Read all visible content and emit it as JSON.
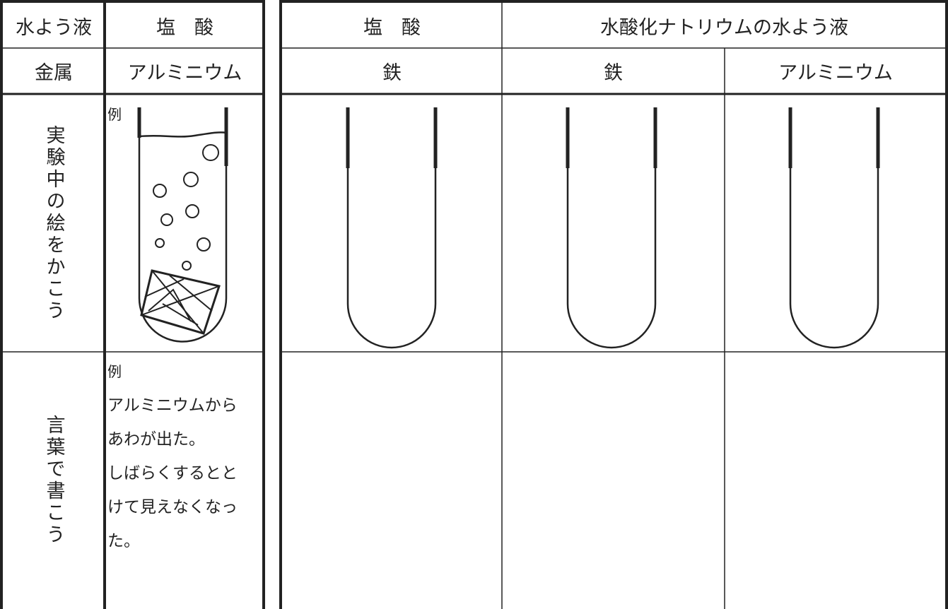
{
  "left_table": {
    "header": {
      "solution_label": "水よう液",
      "solution": "塩　酸"
    },
    "metal_row": {
      "label": "金属",
      "metal": "アルミニウム"
    },
    "drawing_row": {
      "label": "実験中の絵をかこう",
      "example_label": "例"
    },
    "words_row": {
      "label": "言葉で書こう",
      "example_label": "例",
      "example_lines": [
        "アルミニウムから",
        "あわが出た。",
        "しばらくするとと",
        "けて見えなくなっ",
        "た。"
      ]
    }
  },
  "right_table": {
    "solutions": [
      "塩　酸",
      "水酸化ナトリウムの水よう液"
    ],
    "metals": [
      "鉄",
      "鉄",
      "アルミニウム"
    ]
  }
}
